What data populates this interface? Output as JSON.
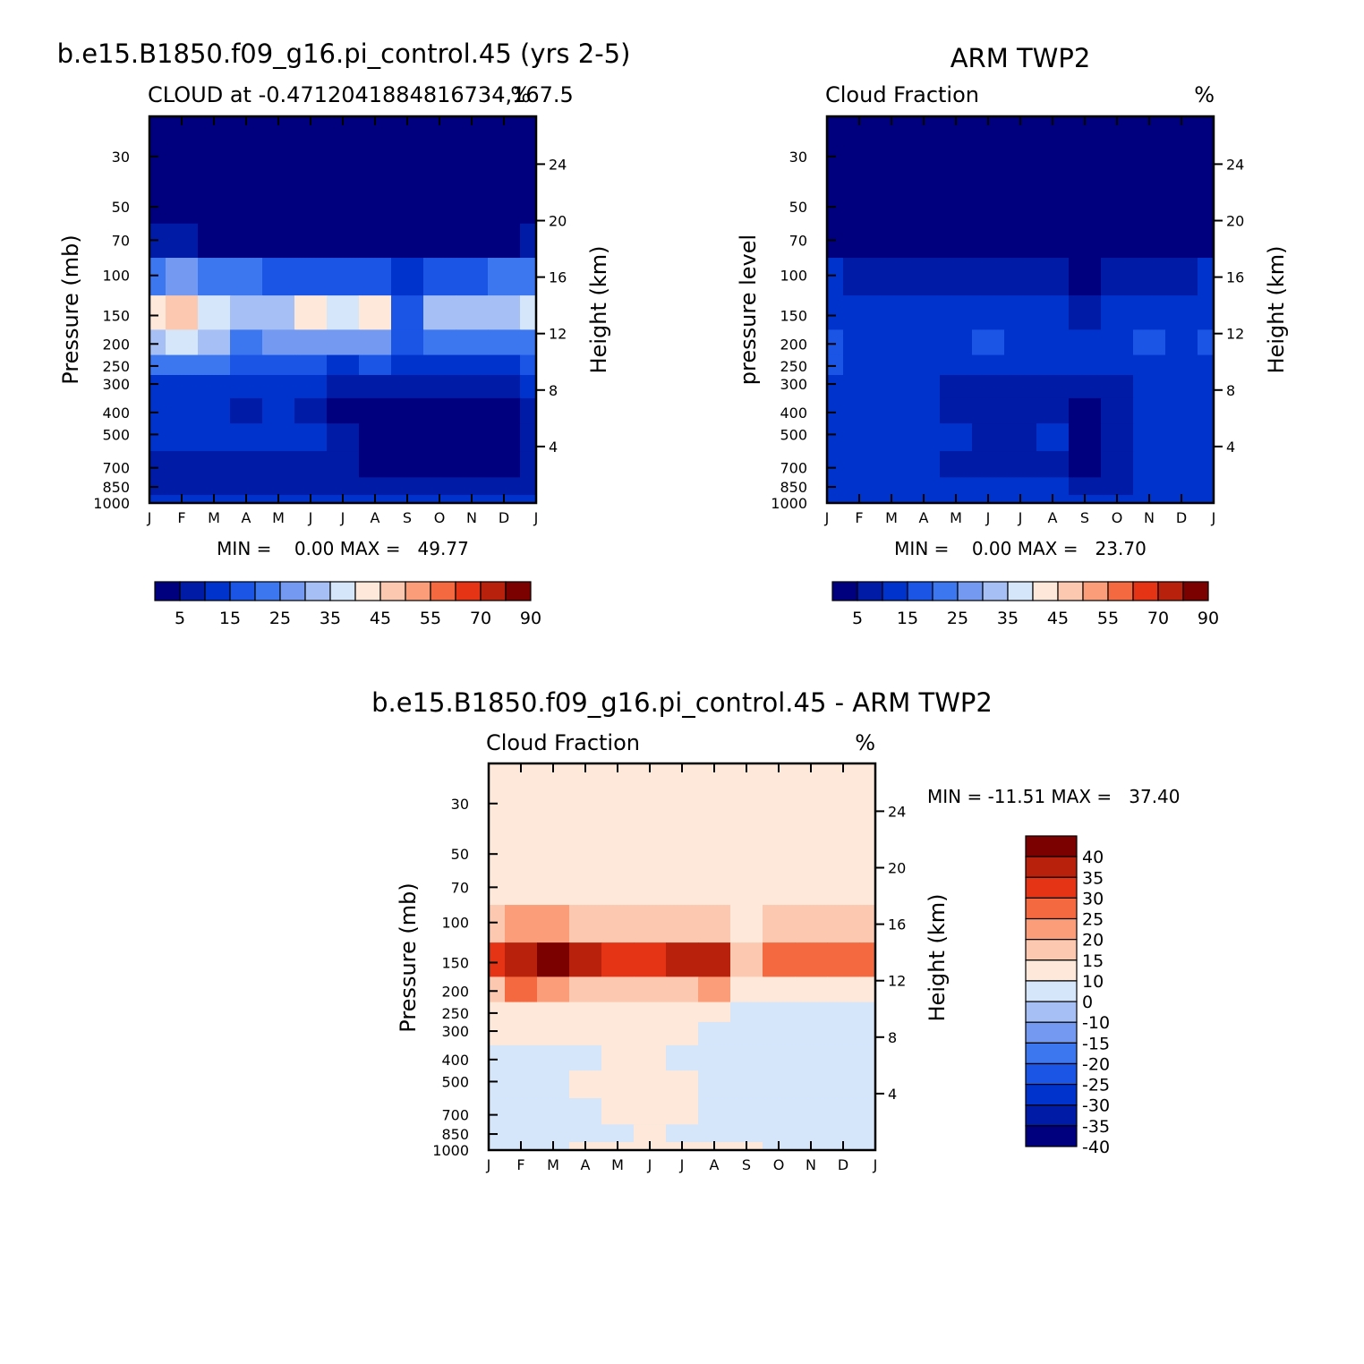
{
  "panels": [
    {
      "id": "model",
      "title": "b.e15.B1850.f09_g16.pi_control.45 (yrs 2-5)",
      "subtitle_left": "CLOUD at -0.4712041884816734,167.5",
      "subtitle_right": "%",
      "ylabel_left": "Pressure (mb)",
      "ylabel_right": "Height (km)",
      "min_max": "MIN =    0.00 MAX =   49.77"
    },
    {
      "id": "obs",
      "title": "ARM TWP2",
      "subtitle_left": "Cloud Fraction",
      "subtitle_right": "%",
      "ylabel_left": "pressure level",
      "ylabel_right": "Height (km)",
      "min_max": "MIN =    0.00 MAX =   23.70"
    },
    {
      "id": "diff",
      "title": "b.e15.B1850.f09_g16.pi_control.45 - ARM TWP2",
      "subtitle_left": "Cloud Fraction",
      "subtitle_right": "%",
      "ylabel_left": "Pressure (mb)",
      "ylabel_right": "Height (km)",
      "min_max": "MIN = -11.51 MAX =   37.40"
    }
  ],
  "chart_data": [
    {
      "type": "heatmap",
      "title": "b.e15.B1850.f09_g16.pi_control.45 (yrs 2-5)",
      "variable": "CLOUD",
      "units": "%",
      "x": [
        "J",
        "F",
        "M",
        "A",
        "M",
        "J",
        "J",
        "A",
        "S",
        "O",
        "N",
        "D",
        "J"
      ],
      "y_pressure_mb": [
        30,
        50,
        70,
        100,
        150,
        200,
        250,
        300,
        400,
        500,
        700,
        850,
        1000
      ],
      "y_height_km": [
        24,
        20,
        16,
        12,
        8,
        4
      ],
      "colorbar_labels": [
        "5",
        "15",
        "25",
        "35",
        "45",
        "55",
        "70",
        "90"
      ],
      "min": 0.0,
      "max": 49.77,
      "values": [
        [
          2,
          2,
          2,
          2,
          2,
          2,
          2,
          2,
          2,
          2,
          2,
          2,
          2
        ],
        [
          2,
          2,
          2,
          2,
          2,
          2,
          2,
          2,
          2,
          2,
          2,
          2,
          2
        ],
        [
          5,
          5,
          4,
          4,
          3,
          3,
          3,
          3,
          3,
          3,
          3,
          3,
          5
        ],
        [
          24,
          26,
          24,
          20,
          18,
          18,
          17,
          17,
          12,
          16,
          18,
          20,
          24
        ],
        [
          40,
          46,
          38,
          32,
          34,
          40,
          38,
          42,
          18,
          30,
          34,
          34,
          38
        ],
        [
          32,
          36,
          30,
          24,
          26,
          28,
          26,
          28,
          16,
          20,
          22,
          22,
          24
        ],
        [
          20,
          22,
          20,
          16,
          16,
          16,
          14,
          16,
          10,
          12,
          14,
          14,
          16
        ],
        [
          14,
          12,
          14,
          10,
          10,
          10,
          8,
          6,
          5,
          5,
          6,
          6,
          10
        ],
        [
          12,
          10,
          10,
          8,
          10,
          8,
          4,
          3,
          3,
          3,
          3,
          4,
          8
        ],
        [
          10,
          10,
          12,
          10,
          12,
          10,
          6,
          4,
          3,
          3,
          3,
          4,
          8
        ],
        [
          8,
          8,
          8,
          8,
          8,
          8,
          6,
          3,
          3,
          3,
          3,
          4,
          6
        ],
        [
          8,
          8,
          8,
          8,
          8,
          8,
          8,
          6,
          6,
          6,
          6,
          7,
          8
        ],
        [
          10,
          10,
          10,
          10,
          10,
          10,
          10,
          10,
          10,
          10,
          10,
          10,
          10
        ]
      ]
    },
    {
      "type": "heatmap",
      "title": "ARM TWP2",
      "variable": "Cloud Fraction",
      "units": "%",
      "x": [
        "J",
        "F",
        "M",
        "A",
        "M",
        "J",
        "J",
        "A",
        "S",
        "O",
        "N",
        "D",
        "J"
      ],
      "y_pressure_mb": [
        30,
        50,
        70,
        100,
        150,
        200,
        250,
        300,
        400,
        500,
        700,
        850,
        1000
      ],
      "y_height_km": [
        24,
        20,
        16,
        12,
        8,
        4
      ],
      "colorbar_labels": [
        "5",
        "15",
        "25",
        "35",
        "45",
        "55",
        "70",
        "90"
      ],
      "min": 0.0,
      "max": 23.7,
      "values": [
        [
          1,
          1,
          1,
          1,
          1,
          1,
          1,
          1,
          1,
          1,
          1,
          1,
          1
        ],
        [
          1,
          1,
          1,
          1,
          1,
          1,
          1,
          1,
          1,
          1,
          1,
          1,
          1
        ],
        [
          3,
          2,
          2,
          2,
          2,
          2,
          2,
          2,
          2,
          2,
          2,
          2,
          3
        ],
        [
          10,
          8,
          6,
          6,
          5,
          5,
          5,
          5,
          4,
          5,
          6,
          8,
          10
        ],
        [
          14,
          14,
          12,
          10,
          12,
          14,
          12,
          10,
          8,
          10,
          12,
          12,
          14
        ],
        [
          18,
          14,
          12,
          12,
          14,
          16,
          14,
          12,
          10,
          12,
          16,
          14,
          16
        ],
        [
          16,
          14,
          12,
          12,
          12,
          14,
          12,
          12,
          10,
          12,
          14,
          12,
          14
        ],
        [
          12,
          12,
          10,
          10,
          8,
          8,
          8,
          8,
          6,
          8,
          10,
          10,
          12
        ],
        [
          12,
          12,
          12,
          10,
          8,
          6,
          6,
          6,
          4,
          8,
          10,
          12,
          12
        ],
        [
          12,
          14,
          12,
          12,
          10,
          8,
          8,
          10,
          4,
          6,
          10,
          12,
          12
        ],
        [
          10,
          12,
          10,
          10,
          6,
          8,
          6,
          8,
          4,
          6,
          10,
          10,
          10
        ],
        [
          10,
          10,
          10,
          10,
          10,
          10,
          10,
          10,
          8,
          8,
          10,
          10,
          10
        ],
        [
          14,
          14,
          14,
          14,
          14,
          14,
          14,
          14,
          14,
          14,
          14,
          14,
          14
        ]
      ]
    },
    {
      "type": "heatmap",
      "title": "b.e15.B1850.f09_g16.pi_control.45 - ARM TWP2",
      "variable": "Cloud Fraction",
      "units": "%",
      "x": [
        "J",
        "F",
        "M",
        "A",
        "M",
        "J",
        "J",
        "A",
        "S",
        "O",
        "N",
        "D",
        "J"
      ],
      "y_pressure_mb": [
        30,
        50,
        70,
        100,
        150,
        200,
        250,
        300,
        400,
        500,
        700,
        850,
        1000
      ],
      "y_height_km": [
        24,
        20,
        16,
        12,
        8,
        4
      ],
      "colorbar_labels": [
        "40",
        "35",
        "30",
        "25",
        "20",
        "15",
        "10",
        "0",
        "-10",
        "-15",
        "-20",
        "-25",
        "-30",
        "-35",
        "-40"
      ],
      "min": -11.51,
      "max": 37.4,
      "values": [
        [
          0,
          0,
          0,
          0,
          0,
          0,
          0,
          0,
          0,
          0,
          0,
          0,
          0
        ],
        [
          0,
          0,
          0,
          0,
          0,
          0,
          0,
          0,
          0,
          0,
          0,
          0,
          0
        ],
        [
          3,
          3,
          3,
          0,
          0,
          0,
          3,
          3,
          3,
          3,
          3,
          3,
          3
        ],
        [
          14,
          18,
          18,
          14,
          13,
          13,
          12,
          12,
          8,
          11,
          12,
          12,
          14
        ],
        [
          26,
          32,
          36,
          30,
          29,
          26,
          31,
          33,
          12,
          20,
          22,
          24,
          24
        ],
        [
          14,
          22,
          18,
          12,
          12,
          12,
          12,
          16,
          6,
          8,
          6,
          6,
          8
        ],
        [
          4,
          8,
          8,
          8,
          4,
          2,
          2,
          4,
          -2,
          -2,
          -4,
          -2,
          -2
        ],
        [
          2,
          0,
          2,
          0,
          2,
          2,
          0,
          -2,
          -2,
          -3,
          -4,
          -4,
          -2
        ],
        [
          -1,
          -2,
          -2,
          -2,
          2,
          2,
          -2,
          -3,
          -1,
          -5,
          -6,
          -8,
          -2
        ],
        [
          -2,
          -4,
          -1,
          2,
          4,
          3,
          0,
          -6,
          -2,
          -3,
          -1,
          -1,
          -4
        ],
        [
          -2,
          -4,
          -2,
          -2,
          2,
          1,
          2,
          -4,
          -1,
          -3,
          -7,
          -6,
          -4
        ],
        [
          -3,
          -2,
          -2,
          -2,
          -2,
          2,
          -2,
          -4,
          -2,
          -2,
          -4,
          -3,
          -4
        ],
        [
          -4,
          -4,
          -4,
          2,
          2,
          2,
          2,
          2,
          2,
          -4,
          -4,
          -4,
          -4
        ]
      ]
    }
  ],
  "colors": {
    "abs_scale": [
      "#00007f",
      "#001ba6",
      "#0033cc",
      "#1a55e6",
      "#3d77f0",
      "#7399f0",
      "#a6c0f5",
      "#d5e6fb",
      "#fde8da",
      "#fcc8b0",
      "#fb9d78",
      "#f4693f",
      "#e53316",
      "#b8210b",
      "#7b0000"
    ],
    "diff_scale": [
      "#7b0000",
      "#b8210b",
      "#e53316",
      "#f4693f",
      "#fb9d78",
      "#fcc8b0",
      "#fde8da",
      "#d5e6fb",
      "#a6c0f5",
      "#7399f0",
      "#3d77f0",
      "#1a55e6",
      "#0033cc",
      "#001ba6",
      "#00007f"
    ]
  }
}
